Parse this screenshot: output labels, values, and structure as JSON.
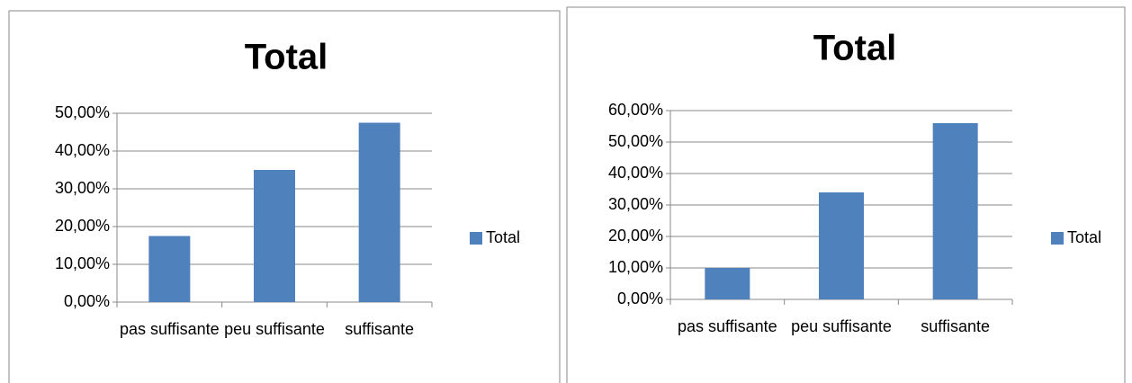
{
  "chart_data": [
    {
      "type": "bar",
      "title": "Total",
      "categories": [
        "pas suffisante",
        "peu suffisante",
        "suffisante"
      ],
      "series": [
        {
          "name": "Total",
          "color": "#4f81bd",
          "values": [
            17.5,
            35,
            47.5
          ]
        }
      ],
      "ylim": [
        0,
        50
      ],
      "yticks": [
        {
          "value": 0,
          "label": "0,00%"
        },
        {
          "value": 10,
          "label": "10,00%"
        },
        {
          "value": 20,
          "label": "20,00%"
        },
        {
          "value": 30,
          "label": "30,00%"
        },
        {
          "value": 40,
          "label": "40,00%"
        },
        {
          "value": 50,
          "label": "50,00%"
        }
      ],
      "grid": true,
      "legend": "right"
    },
    {
      "type": "bar",
      "title": "Total",
      "categories": [
        "pas suffisante",
        "peu suffisante",
        "suffisante"
      ],
      "series": [
        {
          "name": "Total",
          "color": "#4f81bd",
          "values": [
            10,
            34,
            56
          ]
        }
      ],
      "ylim": [
        0,
        60
      ],
      "yticks": [
        {
          "value": 0,
          "label": "0,00%"
        },
        {
          "value": 10,
          "label": "10,00%"
        },
        {
          "value": 20,
          "label": "20,00%"
        },
        {
          "value": 30,
          "label": "30,00%"
        },
        {
          "value": 40,
          "label": "40,00%"
        },
        {
          "value": 50,
          "label": "50,00%"
        },
        {
          "value": 60,
          "label": "60,00%"
        }
      ],
      "grid": true,
      "legend": "right"
    }
  ]
}
